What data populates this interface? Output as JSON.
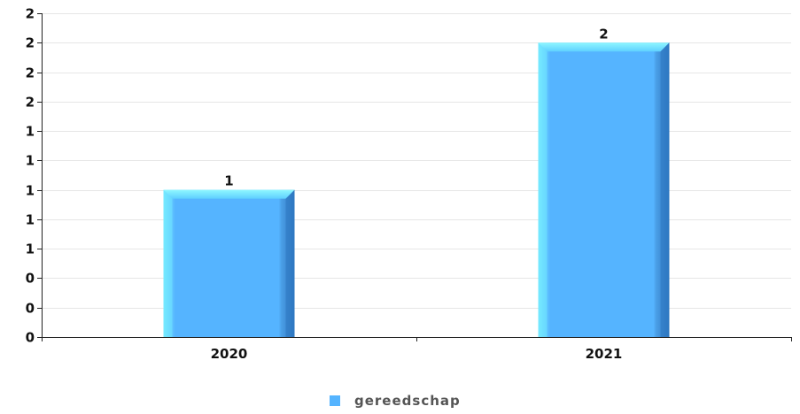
{
  "chart_data": {
    "type": "bar",
    "categories": [
      "2020",
      "2021"
    ],
    "series": [
      {
        "name": "gereedschap",
        "values": [
          1,
          2
        ],
        "color": "#55b4ff"
      }
    ],
    "ylim": [
      0,
      2.2
    ],
    "y_ticks": [
      0,
      0.2,
      0.4,
      0.6,
      0.8,
      1.0,
      1.2,
      1.4,
      1.6,
      1.8,
      2.0,
      2.2
    ],
    "y_tick_labels": [
      "0",
      "0",
      "0",
      "1",
      "1",
      "1",
      "1",
      "1",
      "2",
      "2",
      "2",
      "2"
    ],
    "data_labels": [
      "1",
      "2"
    ],
    "grid": true,
    "legend_position": "bottom-center",
    "title": "",
    "xlabel": "",
    "ylabel": ""
  }
}
